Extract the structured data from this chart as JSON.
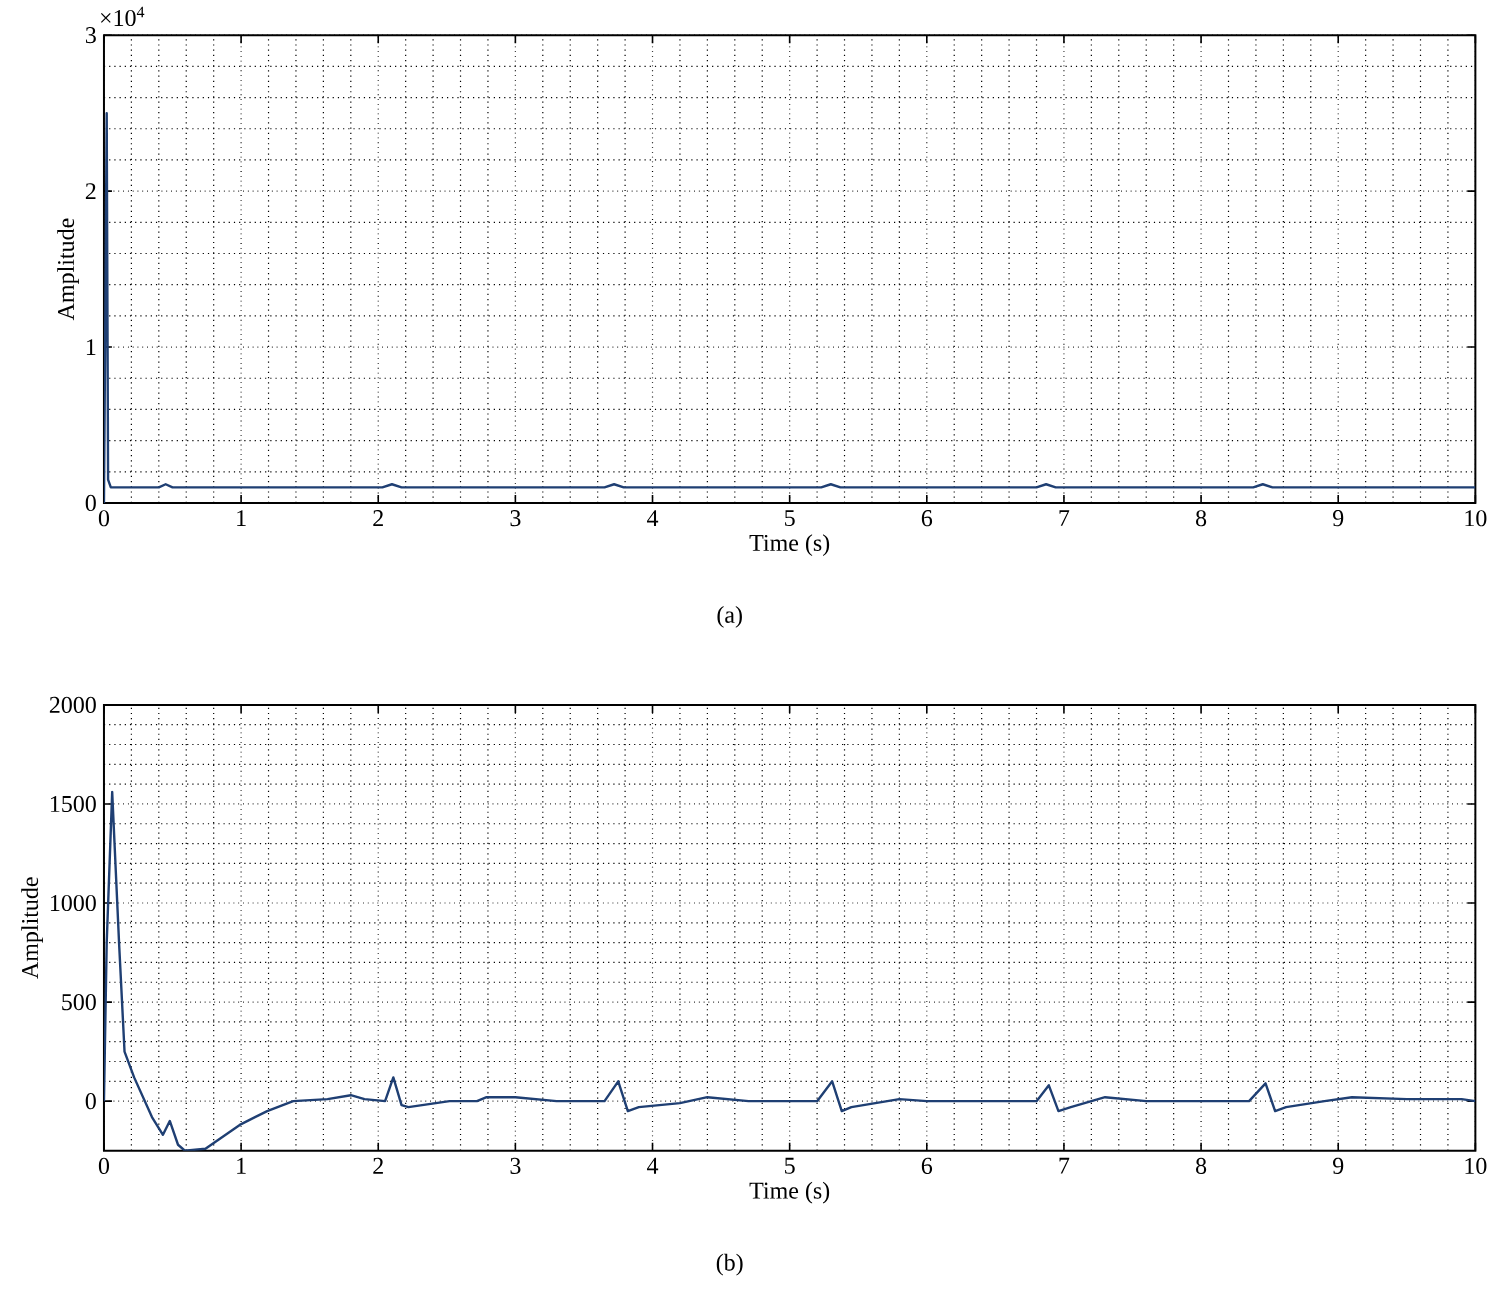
{
  "chart_data": [
    {
      "type": "line",
      "xlabel": "Time (s)",
      "ylabel": "Amplitude",
      "annotations": [
        "×10$^{4}$",
        "(a)"
      ],
      "xlim": [
        0,
        10
      ],
      "ylim": [
        0,
        3
      ],
      "xticks": [
        0,
        1,
        2,
        3,
        4,
        5,
        6,
        7,
        8,
        9,
        10
      ],
      "yticks": [
        0,
        1,
        2,
        3
      ],
      "grid": true,
      "color": "#1f3f73",
      "x": [
        0,
        0.01,
        0.02,
        0.03,
        0.05,
        0.4,
        0.45,
        0.5,
        2.03,
        2.1,
        2.17,
        3.65,
        3.72,
        3.79,
        5.23,
        5.3,
        5.37,
        6.8,
        6.87,
        6.94,
        8.38,
        8.45,
        8.52,
        10
      ],
      "values": [
        0,
        1.2,
        2.5,
        0.15,
        0.1,
        0.1,
        0.12,
        0.1,
        0.1,
        0.12,
        0.1,
        0.1,
        0.12,
        0.1,
        0.1,
        0.12,
        0.1,
        0.1,
        0.12,
        0.1,
        0.1,
        0.12,
        0.1,
        0.1
      ]
    },
    {
      "type": "line",
      "xlabel": "Time (s)",
      "ylabel": "Amplitude",
      "annotations": [
        "(b)"
      ],
      "xlim": [
        0,
        10
      ],
      "ylim": [
        -250,
        2000
      ],
      "xticks": [
        0,
        1,
        2,
        3,
        4,
        5,
        6,
        7,
        8,
        9,
        10
      ],
      "yticks": [
        0,
        500,
        1000,
        1500,
        2000
      ],
      "grid": true,
      "color": "#1f3f73",
      "x": [
        0,
        0.02,
        0.06,
        0.11,
        0.15,
        0.22,
        0.35,
        0.43,
        0.48,
        0.54,
        0.59,
        0.74,
        0.99,
        1.19,
        1.38,
        1.63,
        1.8,
        1.9,
        2.05,
        2.11,
        2.17,
        2.22,
        2.52,
        2.72,
        2.79,
        3.0,
        3.3,
        3.65,
        3.75,
        3.82,
        3.9,
        4.2,
        4.4,
        4.7,
        5.0,
        5.2,
        5.31,
        5.38,
        5.45,
        5.8,
        6.0,
        6.4,
        6.8,
        6.89,
        6.96,
        7.05,
        7.3,
        7.6,
        8.0,
        8.35,
        8.47,
        8.54,
        8.62,
        8.9,
        9.1,
        9.5,
        9.9,
        10
      ],
      "values": [
        0,
        800,
        1560,
        800,
        250,
        120,
        -80,
        -170,
        -100,
        -220,
        -250,
        -240,
        -120,
        -50,
        0,
        10,
        30,
        10,
        0,
        120,
        -20,
        -30,
        0,
        0,
        20,
        20,
        0,
        0,
        100,
        -50,
        -30,
        -10,
        20,
        0,
        0,
        0,
        100,
        -50,
        -30,
        10,
        0,
        0,
        0,
        80,
        -50,
        -30,
        20,
        0,
        0,
        0,
        90,
        -50,
        -30,
        0,
        20,
        10,
        10,
        0
      ]
    }
  ]
}
